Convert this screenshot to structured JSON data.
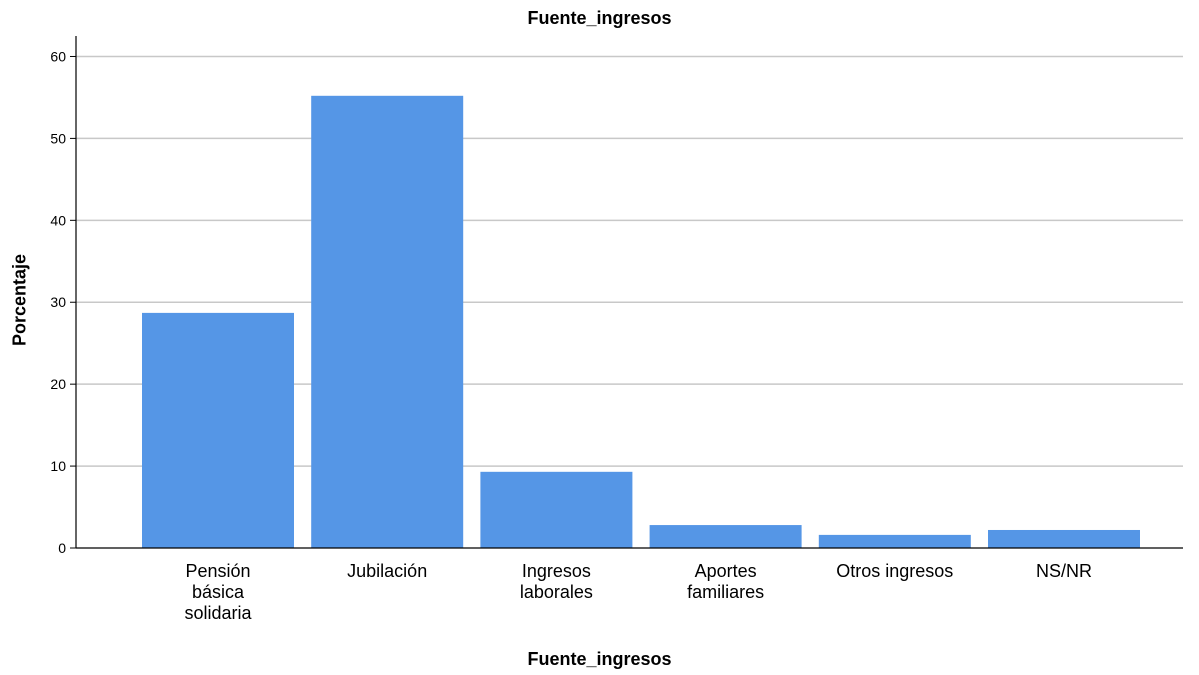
{
  "chart_data": {
    "type": "bar",
    "title": "Fuente_ingresos",
    "xlabel": "Fuente_ingresos",
    "ylabel": "Porcentaje",
    "categories": [
      [
        "Pensión",
        "básica",
        "solidaria"
      ],
      [
        "Jubilación"
      ],
      [
        "Ingresos",
        "laborales"
      ],
      [
        "Aportes",
        "familiares"
      ],
      [
        "Otros ingresos"
      ],
      [
        "NS/NR"
      ]
    ],
    "values": [
      28.7,
      55.2,
      9.3,
      2.8,
      1.6,
      2.2
    ],
    "ylim": [
      0,
      62.5
    ],
    "yticks": [
      0,
      10,
      20,
      30,
      40,
      50,
      60
    ],
    "grid": true,
    "bar_color": "#5596e6",
    "grid_color": "#c8c8c8"
  }
}
